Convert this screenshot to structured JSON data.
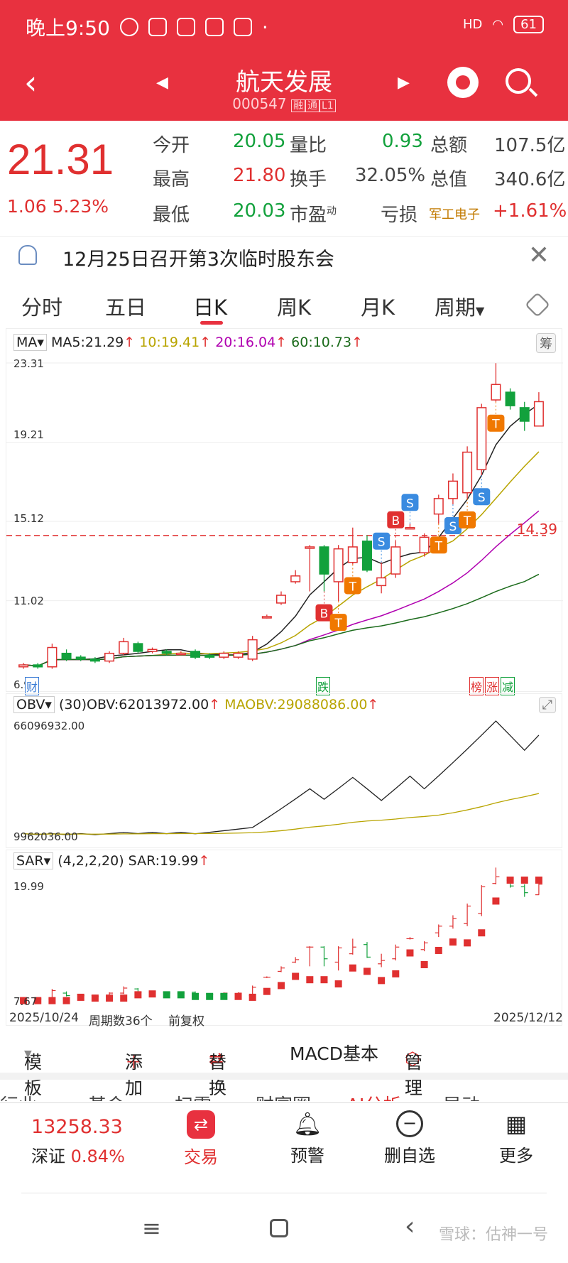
{
  "status": {
    "time": "晚上9:50",
    "battery": "61",
    "signal": "HD"
  },
  "header": {
    "title": "航天发展",
    "code": "000547",
    "tags": [
      "融",
      "通",
      "L1"
    ]
  },
  "quote": {
    "price": "21.31",
    "change": "1.06",
    "change_pct": "5.23%",
    "open_label": "今开",
    "open": "20.05",
    "high_label": "最高",
    "high": "21.80",
    "low_label": "最低",
    "low": "20.03",
    "vr_label": "量比",
    "vr": "0.93",
    "turnover_label": "换手",
    "turnover": "32.05%",
    "pe_label": "市盈",
    "pe_sup": "动",
    "pe": "亏损",
    "amount_label": "总额",
    "amount": "107.5亿",
    "mcap_label": "总值",
    "mcap": "340.6亿",
    "sector": "军工电子",
    "sector_pct": "+1.61%"
  },
  "notice": {
    "text": "12月25日召开第3次临时股东会"
  },
  "tabs": [
    "分时",
    "五日",
    "日K",
    "周K",
    "月K",
    "周期"
  ],
  "active_tab": "日K",
  "main_chart": {
    "ind_name": "MA",
    "ma5": "MA5:21.29",
    "ma10": "10:19.41",
    "ma20": "20:16.04",
    "ma60": "60:10.73",
    "chip_btn": "筹",
    "y_ticks": [
      "23.31",
      "19.21",
      "15.12",
      "11.02",
      "6.93"
    ],
    "ref_line": "14.39",
    "markers": [
      "财",
      "跌",
      "榜",
      "涨",
      "减"
    ]
  },
  "obv": {
    "name": "OBV",
    "param": "(30)",
    "obv": "OBV:62013972.00",
    "maobv": "MAOBV:29088086.00",
    "y_top": "66096932.00",
    "y_bottom": "9962036.00"
  },
  "sar": {
    "name": "SAR",
    "param": "(4,2,2,20)",
    "sar": "SAR:19.99",
    "y_top": "19.99",
    "y_bottom": "7.67",
    "date_start": "2025/10/24",
    "periods": "周期数36个",
    "adjust": "前复权",
    "date_end": "2025/12/12"
  },
  "toolbar": {
    "template": "模板",
    "add": "添加",
    "replace": "替换",
    "indicator": "MACD基本",
    "manage": "管理"
  },
  "subtabs": [
    "行业",
    "基金",
    "扫雷",
    "财富圈",
    "AI分析",
    "异动"
  ],
  "bottom": {
    "index_value": "13258.33",
    "index_name": "深证",
    "index_pct": "0.84%",
    "trade": "交易",
    "alert": "预警",
    "remove": "删自选",
    "more": "更多"
  },
  "watermark": "雪球：估神一号",
  "chart_data": {
    "type": "candlestick",
    "ylim": [
      6.93,
      23.31
    ],
    "candles": [
      {
        "o": 7.6,
        "c": 7.7,
        "h": 7.8,
        "l": 7.5
      },
      {
        "o": 7.7,
        "c": 7.6,
        "h": 7.8,
        "l": 7.5
      },
      {
        "o": 7.6,
        "c": 8.6,
        "h": 8.8,
        "l": 7.5
      },
      {
        "o": 8.3,
        "c": 8.0,
        "h": 8.5,
        "l": 7.9
      },
      {
        "o": 8.1,
        "c": 8.0,
        "h": 8.2,
        "l": 7.9
      },
      {
        "o": 8.0,
        "c": 7.9,
        "h": 8.1,
        "l": 7.8
      },
      {
        "o": 7.9,
        "c": 8.3,
        "h": 8.4,
        "l": 7.8
      },
      {
        "o": 8.3,
        "c": 8.9,
        "h": 9.1,
        "l": 8.2
      },
      {
        "o": 8.8,
        "c": 8.4,
        "h": 8.9,
        "l": 8.3
      },
      {
        "o": 8.4,
        "c": 8.5,
        "h": 8.6,
        "l": 8.3
      },
      {
        "o": 8.4,
        "c": 8.3,
        "h": 8.5,
        "l": 8.2
      },
      {
        "o": 8.3,
        "c": 8.3,
        "h": 8.4,
        "l": 8.2
      },
      {
        "o": 8.4,
        "c": 8.1,
        "h": 8.5,
        "l": 8.0
      },
      {
        "o": 8.2,
        "c": 8.1,
        "h": 8.3,
        "l": 8.0
      },
      {
        "o": 8.1,
        "c": 8.3,
        "h": 8.4,
        "l": 8.0
      },
      {
        "o": 8.1,
        "c": 8.3,
        "h": 8.4,
        "l": 8.0
      },
      {
        "o": 8.0,
        "c": 9.0,
        "h": 9.2,
        "l": 7.9
      },
      {
        "o": 10.2,
        "c": 10.2,
        "h": 10.3,
        "l": 10.1
      },
      {
        "o": 10.9,
        "c": 11.3,
        "h": 11.5,
        "l": 10.8
      },
      {
        "o": 12.0,
        "c": 12.3,
        "h": 12.6,
        "l": 11.9
      },
      {
        "o": 13.8,
        "c": 13.8,
        "h": 13.9,
        "l": 11.5
      },
      {
        "o": 13.8,
        "c": 12.4,
        "h": 13.9,
        "l": 11.5
      },
      {
        "o": 12.0,
        "c": 13.7,
        "h": 13.9,
        "l": 11.0
      },
      {
        "o": 13.0,
        "c": 13.8,
        "h": 14.8,
        "l": 12.9
      },
      {
        "o": 14.1,
        "c": 12.6,
        "h": 14.4,
        "l": 12.5
      },
      {
        "o": 11.8,
        "c": 12.2,
        "h": 13.0,
        "l": 11.4
      },
      {
        "o": 12.4,
        "c": 13.8,
        "h": 14.1,
        "l": 12.2
      },
      {
        "o": 14.8,
        "c": 14.8,
        "h": 15.0,
        "l": 14.7
      },
      {
        "o": 13.5,
        "c": 14.3,
        "h": 14.5,
        "l": 13.3
      },
      {
        "o": 15.5,
        "c": 16.3,
        "h": 16.5,
        "l": 15.0
      },
      {
        "o": 16.3,
        "c": 17.2,
        "h": 17.6,
        "l": 16.0
      },
      {
        "o": 16.6,
        "c": 18.7,
        "h": 19.0,
        "l": 16.3
      },
      {
        "o": 17.8,
        "c": 21.0,
        "h": 21.2,
        "l": 17.5
      },
      {
        "o": 21.4,
        "c": 22.2,
        "h": 23.3,
        "l": 21.3
      },
      {
        "o": 21.8,
        "c": 21.1,
        "h": 22.0,
        "l": 20.9
      },
      {
        "o": 21.0,
        "c": 20.3,
        "h": 21.3,
        "l": 19.8
      },
      {
        "o": 20.05,
        "c": 21.31,
        "h": 21.8,
        "l": 20.03
      }
    ]
  }
}
